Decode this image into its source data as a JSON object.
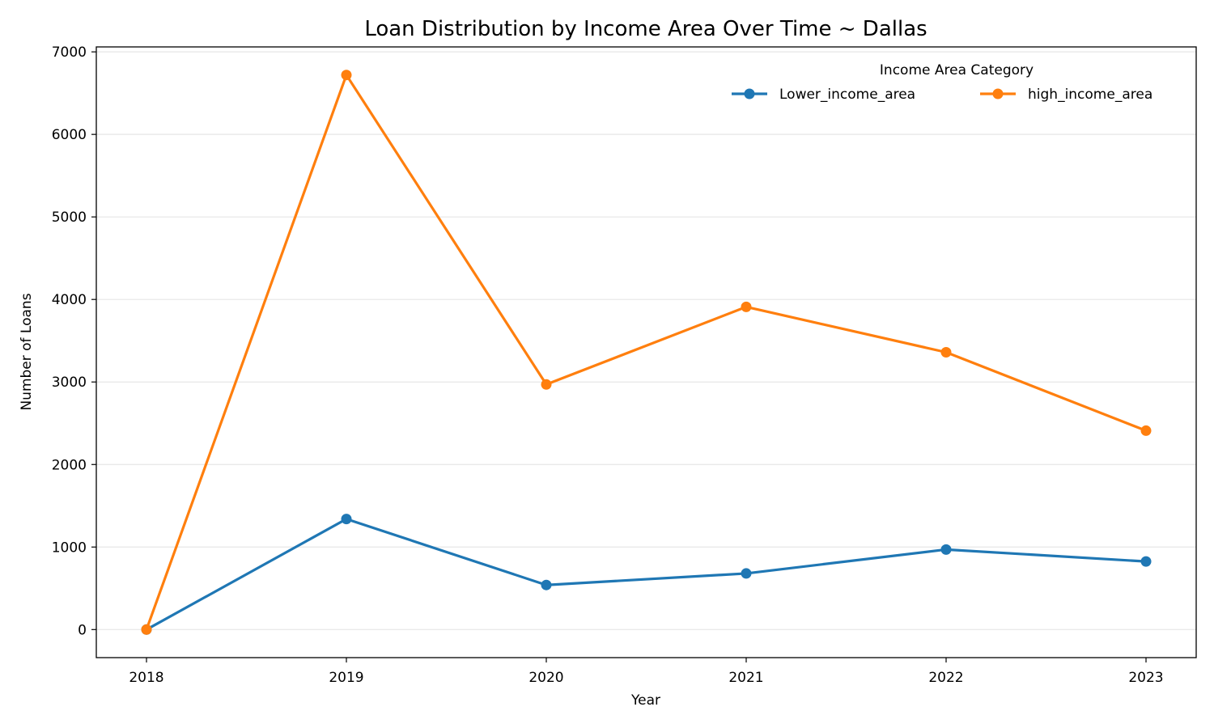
{
  "chart_data": {
    "type": "line",
    "title": "Loan Distribution by Income Area Over Time ~ Dallas",
    "xlabel": "Year",
    "ylabel": "Number of Loans",
    "x": [
      2018,
      2019,
      2020,
      2021,
      2022,
      2023
    ],
    "x_tick_labels": [
      "2018",
      "2019",
      "2020",
      "2021",
      "2022",
      "2023"
    ],
    "ylim": [
      -340,
      7060
    ],
    "y_ticks": [
      0,
      1000,
      2000,
      3000,
      4000,
      5000,
      6000,
      7000
    ],
    "y_tick_labels": [
      "0",
      "1000",
      "2000",
      "3000",
      "4000",
      "5000",
      "6000",
      "7000"
    ],
    "grid": "horizontal",
    "legend": {
      "title": "Income Area Category",
      "placement": "top-right"
    },
    "series": [
      {
        "name": "Lower_income_area",
        "color": "#1f77b4",
        "values": [
          0,
          1340,
          540,
          680,
          970,
          825
        ]
      },
      {
        "name": "high_income_area",
        "color": "#ff7f0e",
        "values": [
          0,
          6720,
          2970,
          3910,
          3360,
          2410
        ]
      }
    ]
  }
}
